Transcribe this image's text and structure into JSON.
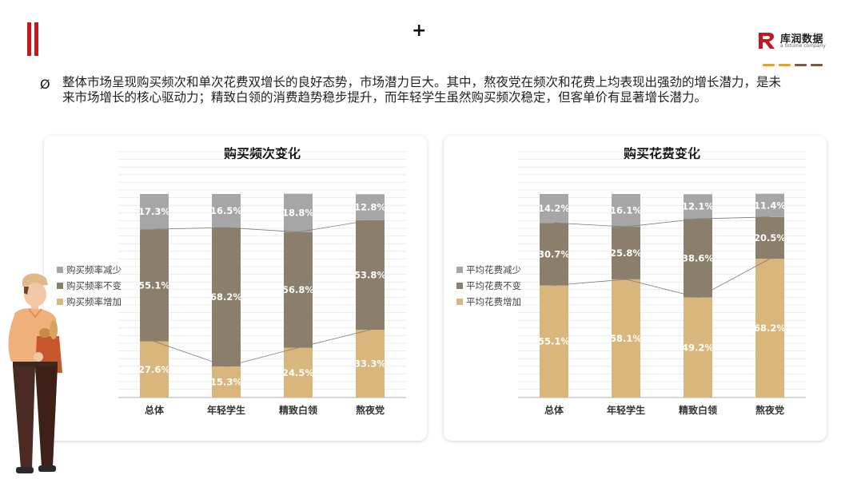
{
  "header": {
    "plus_glyph": "+",
    "logo_text": "库润数据",
    "logo_sub": "a totume company",
    "logo_dash_colors": [
      "#e7a31a",
      "#e7a31a",
      "#7a5a3a",
      "#7a5a3a"
    ],
    "accent_color": "#c8161d"
  },
  "summary": {
    "bullet": "Ø",
    "text": "整体市场呈现购买频次和单次花费双增长的良好态势，市场潜力巨大。其中，熬夜党在频次和花费上均表现出强劲的增长潜力，是未来市场增长的核心驱动力；精致白领的消费趋势稳步提升，而年轻学生虽然购买频次稳定，但客单价有显著增长潜力。"
  },
  "colors": {
    "increase": "#d9b67b",
    "same": "#8b7e6a",
    "decrease": "#a6a6a6"
  },
  "chart_data": [
    {
      "type": "bar",
      "stacked": true,
      "title": "购买频次变化",
      "categories": [
        "总体",
        "年轻学生",
        "精致白领",
        "熬夜党"
      ],
      "series": [
        {
          "name": "购买频率增加",
          "values": [
            27.6,
            15.3,
            24.5,
            33.3
          ],
          "labels": [
            "27.6%",
            "15.3%",
            "24.5%",
            "33.3%"
          ]
        },
        {
          "name": "购买频率不变",
          "values": [
            55.1,
            68.2,
            56.8,
            53.8
          ],
          "labels": [
            "55.1%",
            "68.2%",
            "56.8%",
            "53.8%"
          ]
        },
        {
          "name": "购买频率减少",
          "values": [
            17.3,
            16.5,
            18.8,
            12.8
          ],
          "labels": [
            "17.3%",
            "16.5%",
            "18.8%",
            "12.8%"
          ]
        }
      ],
      "ylim": [
        0,
        100
      ],
      "connector_lines": true,
      "legend_position": "left",
      "grid": true
    },
    {
      "type": "bar",
      "stacked": true,
      "title": "购买花费变化",
      "categories": [
        "总体",
        "年轻学生",
        "精致白领",
        "熬夜党"
      ],
      "series": [
        {
          "name": "平均花费增加",
          "values": [
            55.1,
            58.1,
            49.2,
            68.2
          ],
          "labels": [
            "55.1%",
            "58.1%",
            "49.2%",
            "68.2%"
          ]
        },
        {
          "name": "平均花费不变",
          "values": [
            30.7,
            25.8,
            38.6,
            20.5
          ],
          "labels": [
            "30.7%",
            "25.8%",
            "38.6%",
            "20.5%"
          ]
        },
        {
          "name": "平均花费减少",
          "values": [
            14.2,
            16.1,
            12.1,
            11.4
          ],
          "labels": [
            "14.2%",
            "16.1%",
            "12.1%",
            "11.4%"
          ]
        }
      ],
      "ylim": [
        0,
        100
      ],
      "connector_lines": true,
      "legend_position": "left",
      "grid": true
    }
  ]
}
